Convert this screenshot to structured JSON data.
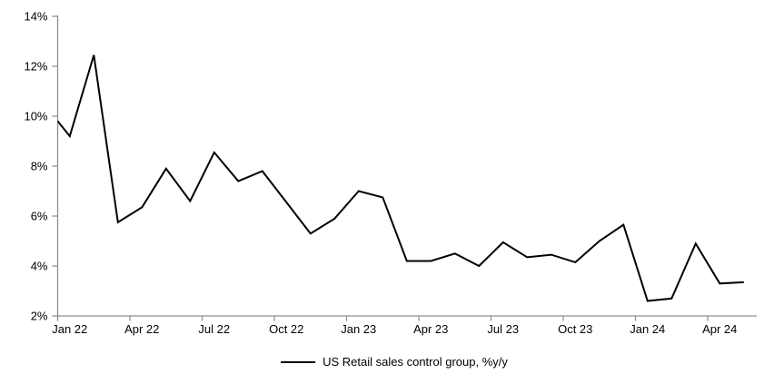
{
  "chart_data": {
    "type": "line",
    "title": "",
    "xlabel": "",
    "ylabel": "",
    "categories": [
      "Jan 22",
      "Feb 22",
      "Mar 22",
      "Apr 22",
      "May 22",
      "Jun 22",
      "Jul 22",
      "Aug 22",
      "Sep 22",
      "Oct 22",
      "Nov 22",
      "Dec 22",
      "Jan 23",
      "Feb 23",
      "Mar 23",
      "Apr 23",
      "May 23",
      "Jun 23",
      "Jul 23",
      "Aug 23",
      "Sep 23",
      "Oct 23",
      "Nov 23",
      "Dec 23",
      "Jan 24",
      "Feb 24",
      "Mar 24",
      "Apr 24",
      "May 24"
    ],
    "series": [
      {
        "name": "US Retail sales control group, %y/y",
        "color": "#000000",
        "values": [
          9.2,
          12.45,
          5.75,
          6.35,
          7.9,
          6.6,
          8.55,
          7.4,
          7.8,
          6.55,
          5.3,
          5.9,
          7.0,
          6.75,
          4.2,
          4.2,
          4.5,
          4.0,
          4.95,
          4.35,
          4.45,
          4.15,
          5.0,
          5.65,
          2.6,
          2.7,
          4.9,
          3.3,
          3.35
        ]
      }
    ],
    "left_edge_entry_value": 9.8,
    "x_tick_labels": [
      "Jan 22",
      "Apr 22",
      "Jul 22",
      "Oct 22",
      "Jan 23",
      "Apr 23",
      "Jul 23",
      "Oct 23",
      "Jan 24",
      "Apr 24"
    ],
    "y_tick_labels": [
      "2%",
      "4%",
      "6%",
      "8%",
      "10%",
      "12%",
      "14%"
    ],
    "ylim": [
      2,
      14
    ],
    "grid": false,
    "legend_position": "bottom-center"
  },
  "styles": {
    "background": "#ffffff",
    "axis_color": "#909090",
    "line_color": "#000000",
    "text_color": "#000000"
  }
}
